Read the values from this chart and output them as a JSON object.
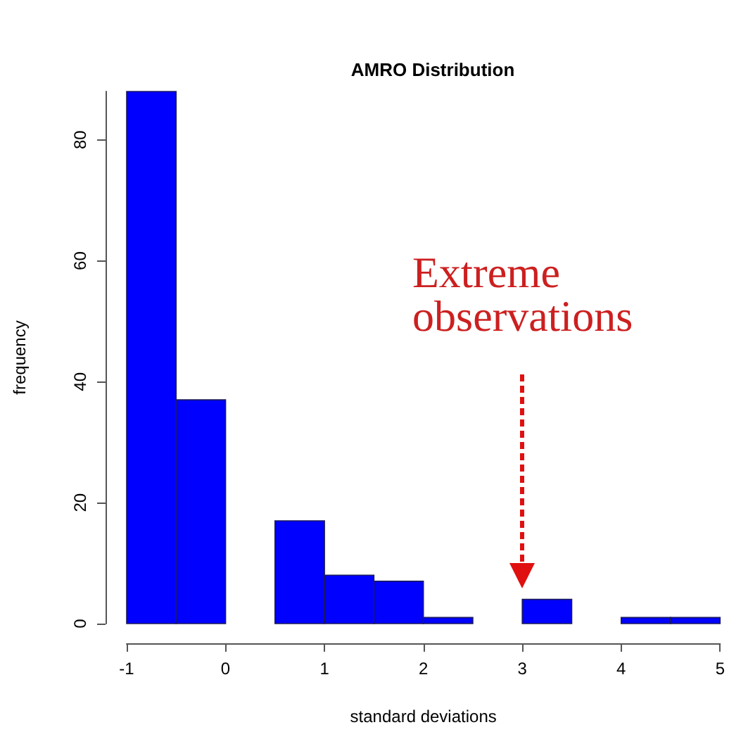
{
  "chart_data": {
    "type": "histogram",
    "title": "AMRO Distribution",
    "xlabel": "standard deviations",
    "ylabel": "frequency",
    "bins": [
      -1,
      -0.5,
      0,
      0.5,
      1,
      1.5,
      2,
      2.5,
      3,
      3.5,
      4,
      4.5,
      5
    ],
    "values": [
      88,
      37,
      0,
      17,
      8,
      7,
      1,
      0,
      4,
      0,
      1,
      1
    ],
    "color": "#0000ff",
    "xlim": [
      -1,
      5
    ],
    "xticks": [
      -1,
      0,
      1,
      2,
      3,
      4,
      5
    ],
    "ylim": [
      0,
      88
    ],
    "yticks": [
      0,
      20,
      40,
      60,
      80
    ],
    "grid": false,
    "annotations": [
      "Extreme observations"
    ]
  }
}
